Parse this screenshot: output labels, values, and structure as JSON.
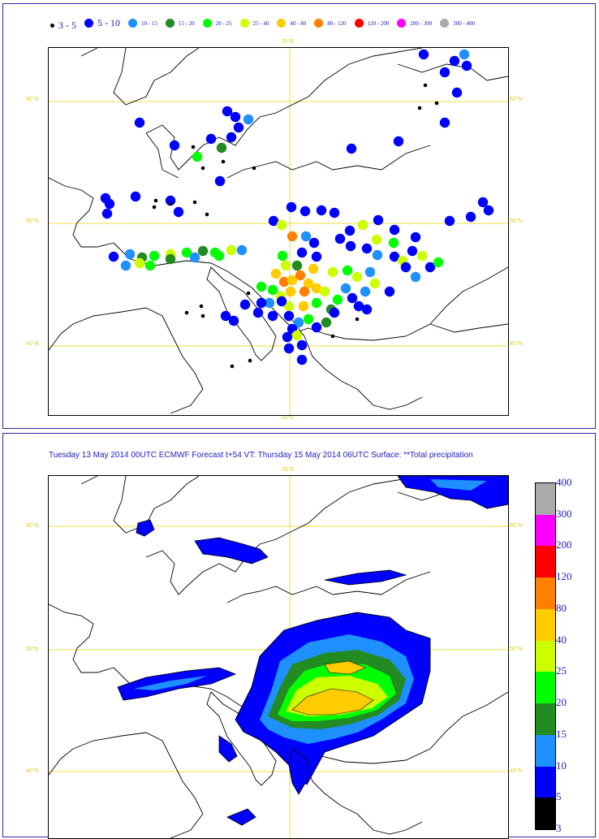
{
  "top_panel": {
    "legend": [
      {
        "label": "3 - 5",
        "color": "#000000",
        "size": "small",
        "big": true
      },
      {
        "label": "5 - 10",
        "color": "#0000ff",
        "size": "normal",
        "big": true
      },
      {
        "label": "10 - 15",
        "color": "#1e90ff",
        "size": "normal",
        "big": false
      },
      {
        "label": "15 - 20",
        "color": "#228b22",
        "size": "normal",
        "big": false
      },
      {
        "label": "20 - 25",
        "color": "#00ff00",
        "size": "normal",
        "big": false
      },
      {
        "label": "25 - 40",
        "color": "#ccff00",
        "size": "normal",
        "big": false
      },
      {
        "label": "40 - 80",
        "color": "#ffcc00",
        "size": "normal",
        "big": false
      },
      {
        "label": "80 - 120",
        "color": "#ff8000",
        "size": "normal",
        "big": false
      },
      {
        "label": "120 - 200",
        "color": "#ff0000",
        "size": "normal",
        "big": false
      },
      {
        "label": "200 - 300",
        "color": "#ff00ff",
        "size": "normal",
        "big": false
      },
      {
        "label": "300 - 400",
        "color": "#aaaaaa",
        "size": "normal",
        "big": false
      }
    ],
    "grid_labels": {
      "lon_top": "20°E",
      "lon_bottom": "20°E",
      "lat60_left": "60°N",
      "lat60_right": "60°N",
      "lat50_left": "50°N",
      "lat50_right": "50°N",
      "lat40_left": "40°N",
      "lat40_right": "40°N"
    }
  },
  "bottom_panel": {
    "title": "Tuesday 13 May 2014 00UTC ECMWF  Forecast t+54 VT: Thursday 15 May 2014 06UTC Surface: **Total precipitation",
    "grid_labels": {
      "lon_top": "20°E",
      "lat60_left": "60°N",
      "lat60_right": "60°N",
      "lat50_left": "50°N",
      "lat50_right": "50°N",
      "lat40_left": "40°N",
      "lat40_right": "40°N"
    },
    "colorbar": [
      {
        "label": "3",
        "color": "#000000"
      },
      {
        "label": "5",
        "color": "#0000ff"
      },
      {
        "label": "10",
        "color": "#1e90ff"
      },
      {
        "label": "15",
        "color": "#228b22"
      },
      {
        "label": "20",
        "color": "#00ff00"
      },
      {
        "label": "25",
        "color": "#ccff00"
      },
      {
        "label": "40",
        "color": "#ffcc00"
      },
      {
        "label": "80",
        "color": "#ff8000"
      },
      {
        "label": "120",
        "color": "#ff0000"
      },
      {
        "label": "200",
        "color": "#ff00ff"
      },
      {
        "label": "300",
        "color": "#aaaaaa"
      },
      {
        "label": "400",
        "color": ""
      }
    ]
  }
}
